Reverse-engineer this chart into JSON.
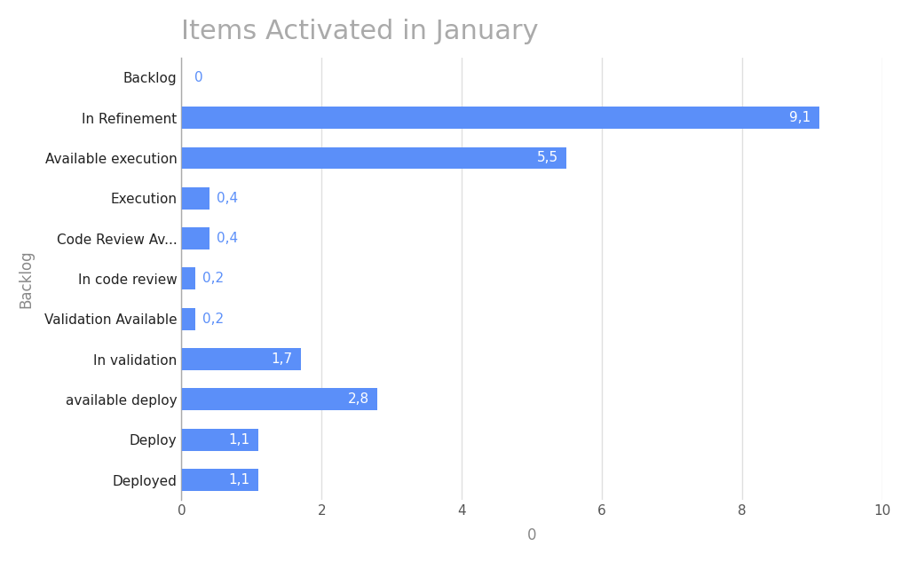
{
  "title": "Items Activated in January",
  "categories": [
    "Backlog",
    "In Refinement",
    "Available execution",
    "Execution",
    "Code Review Av...",
    "In code review",
    "Validation Available",
    "In validation",
    "available deploy",
    "Deploy",
    "Deployed"
  ],
  "values": [
    0,
    9.1,
    5.5,
    0.4,
    0.4,
    0.2,
    0.2,
    1.7,
    2.8,
    1.1,
    1.1
  ],
  "labels": [
    "0",
    "9,1",
    "5,5",
    "0,4",
    "0,4",
    "0,2",
    "0,2",
    "1,7",
    "2,8",
    "1,1",
    "1,1"
  ],
  "bar_color": "#5b8ff9",
  "background_color": "#ffffff",
  "title_color": "#aaaaaa",
  "title_fontsize": 22,
  "ylabel": "Backlog",
  "xlabel": "0",
  "xlim": [
    0,
    10
  ],
  "xticks": [
    0,
    2,
    4,
    6,
    8,
    10
  ],
  "grid_color": "#e0e0e0",
  "label_fontsize": 11,
  "tick_fontsize": 11,
  "axis_label_fontsize": 12,
  "bar_height": 0.55,
  "label_outside_threshold": 0.5
}
